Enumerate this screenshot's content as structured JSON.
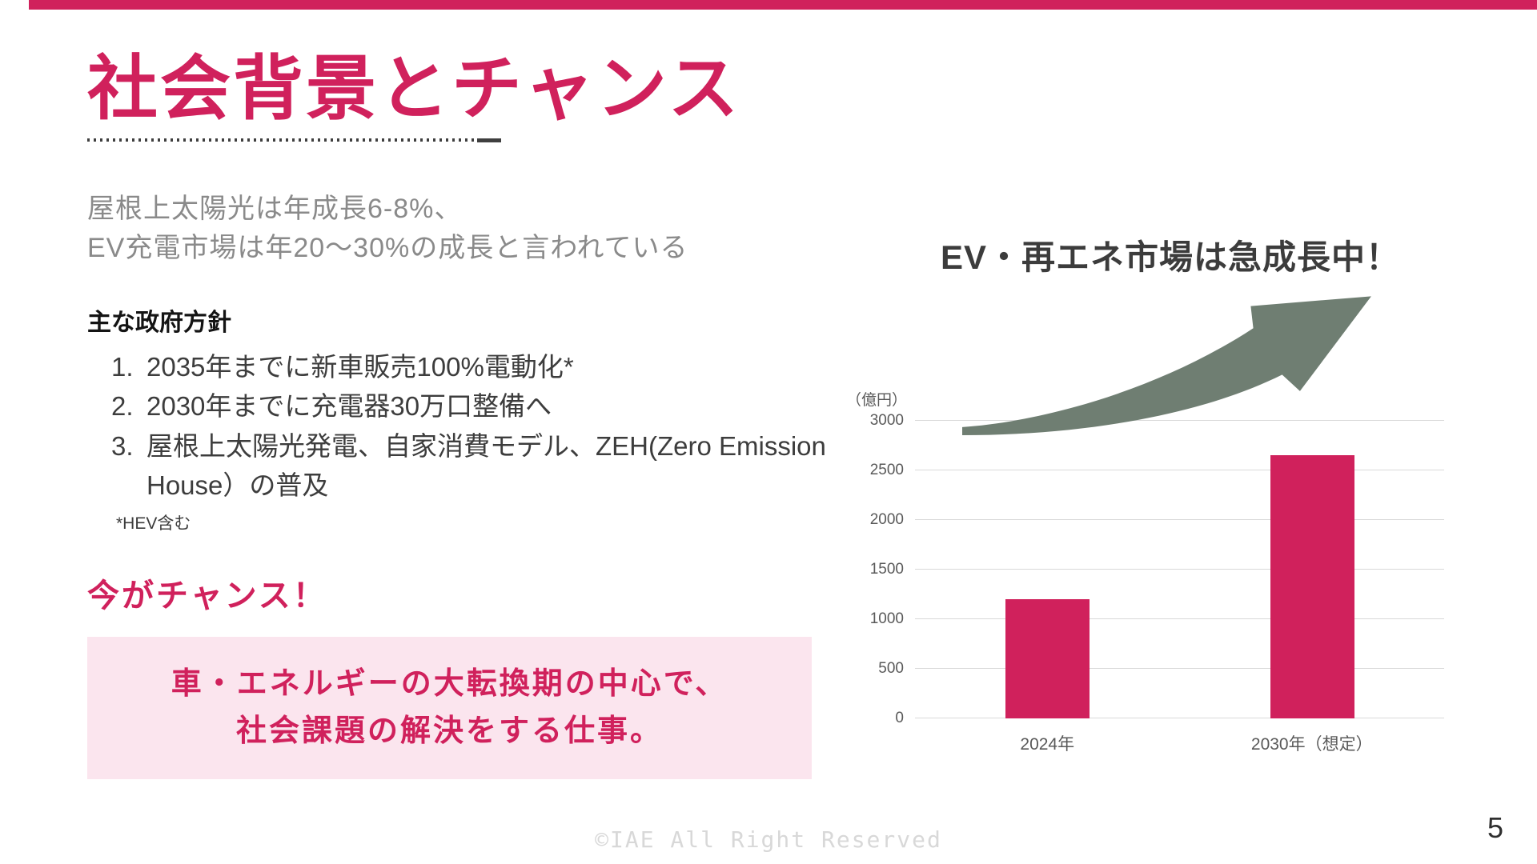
{
  "slide": {
    "title": "社会背景とチャンス",
    "intro_line1": "屋根上太陽光は年成長6-8%、",
    "intro_line2": "EV充電市場は年20〜30%の成長と言われている",
    "policy_heading": "主な政府方針",
    "policy_items": [
      "2035年までに新車販売100%電動化*",
      "2030年までに充電器30万口整備へ",
      "屋根上太陽光発電、自家消費モデル、ZEH(Zero Emission House）の普及"
    ],
    "footnote": "*HEV含む",
    "chance_heading": "今がチャンス！",
    "highlight_line1": "車・エネルギーの大転換期の中心で、",
    "highlight_line2": "社会課題の解決をする仕事。",
    "footer": "©IAE All Right Reserved",
    "page_number": "5"
  },
  "colors": {
    "accent": "#d0215c",
    "highlight_bg": "#fbe5ee",
    "arrow": "#6f7e72",
    "gridline": "#d9d9d9"
  },
  "chart_data": {
    "type": "bar",
    "title": "EV・再エネ市場は急成長中！",
    "unit_label": "（億円）",
    "categories": [
      "2024年",
      "2030年（想定）"
    ],
    "values": [
      1200,
      2650
    ],
    "yticks": [
      3000,
      2500,
      2000,
      1500,
      1000,
      500,
      0
    ],
    "ylim": [
      0,
      3000
    ],
    "bar_color": "#d0215c",
    "grid": true,
    "legend": false
  }
}
